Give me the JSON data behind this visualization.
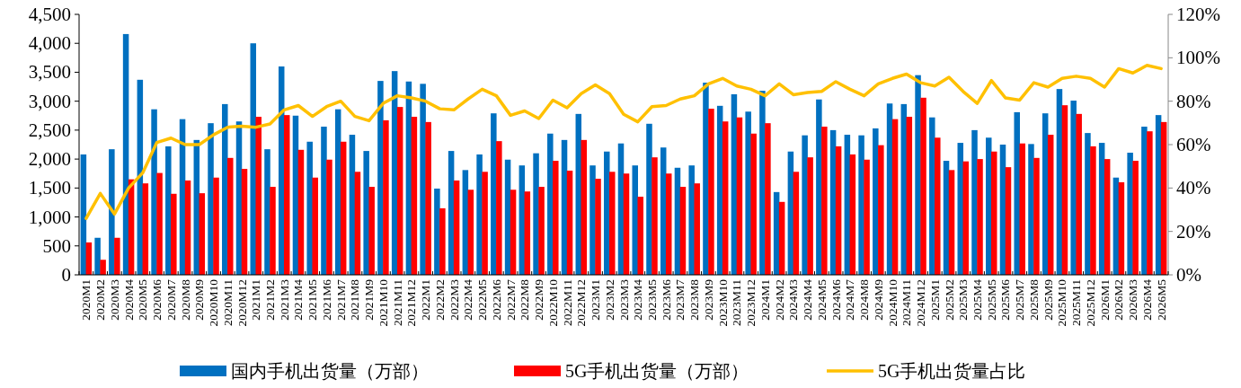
{
  "chart_data": {
    "type": "bar",
    "categories": [
      "2020M1",
      "2020M2",
      "2020M3",
      "2020M4",
      "2020M5",
      "2020M6",
      "2020M7",
      "2020M8",
      "2020M9",
      "2020M10",
      "2020M11",
      "2020M12",
      "2021M1",
      "2021M2",
      "2021M3",
      "2021M4",
      "2021M5",
      "2021M6",
      "2021M7",
      "2021M8",
      "2021M9",
      "2021M10",
      "2021M11",
      "2021M12",
      "2022M1",
      "2022M2",
      "2022M3",
      "2022M4",
      "2022M5",
      "2022M6",
      "2022M7",
      "2022M8",
      "2022M9",
      "2022M10",
      "2022M11",
      "2022M12",
      "2023M1",
      "2023M2",
      "2023M3",
      "2023M4",
      "2023M5",
      "2023M6",
      "2023M7",
      "2023M8",
      "2023M9",
      "2023M10",
      "2023M11",
      "2023M12",
      "2024M1",
      "2024M2",
      "2024M3",
      "2024M4",
      "2024M5",
      "2024M6",
      "2024M7",
      "2024M8",
      "2024M9",
      "2024M10",
      "2024M11",
      "2024M12",
      "2025M1",
      "2025M2",
      "2025M3",
      "2025M4",
      "2025M5",
      "2025M6",
      "2025M7",
      "2025M8",
      "2025M9",
      "2025M10",
      "2025M11",
      "2025M12",
      "2026M1",
      "2026M2",
      "2026M3",
      "2026M4",
      "2026M5"
    ],
    "series": [
      {
        "name": "国内手机出货量（万部）",
        "color": "#0070c0",
        "values": [
          2080,
          640,
          2170,
          4160,
          3370,
          2860,
          2220,
          2690,
          2330,
          2620,
          2950,
          2650,
          4000,
          2170,
          3600,
          2750,
          2300,
          2560,
          2860,
          2420,
          2140,
          3350,
          3520,
          3340,
          3300,
          1490,
          2140,
          1810,
          2080,
          2790,
          1990,
          1890,
          2100,
          2440,
          2330,
          2780,
          1890,
          2130,
          2270,
          1890,
          2610,
          2200,
          1850,
          1890,
          3320,
          2920,
          3120,
          2820,
          3180,
          1430,
          2130,
          2410,
          3030,
          2500,
          2420,
          2410,
          2530,
          2960,
          2950,
          3450,
          2720,
          1970,
          2280,
          2500,
          2370,
          2250,
          2810,
          2260,
          2790,
          3210,
          3010,
          2450,
          2280,
          1680,
          2110,
          2560,
          2760
        ]
      },
      {
        "name": "5G手机出货量（万部）",
        "color": "#ff0000",
        "values": [
          560,
          260,
          640,
          1650,
          1580,
          1760,
          1400,
          1630,
          1410,
          1680,
          2020,
          1830,
          2730,
          1520,
          2760,
          2160,
          1680,
          1990,
          2300,
          1780,
          1520,
          2670,
          2900,
          2730,
          2640,
          1150,
          1630,
          1470,
          1780,
          2310,
          1470,
          1440,
          1520,
          1970,
          1800,
          2330,
          1660,
          1780,
          1750,
          1350,
          2030,
          1750,
          1520,
          1580,
          2870,
          2650,
          2720,
          2440,
          2620,
          1260,
          1780,
          2030,
          2560,
          2220,
          2080,
          1990,
          2240,
          2690,
          2730,
          3060,
          2370,
          1810,
          1960,
          2000,
          2130,
          1860,
          2270,
          2020,
          2420,
          2930,
          2780,
          2220,
          2000,
          1600,
          1970,
          2480,
          2640
        ]
      },
      {
        "name": "5G手机出货量占比",
        "color": "#ffc000",
        "type": "line",
        "axis": "y2",
        "values": [
          26,
          37.5,
          28,
          40,
          47,
          61,
          63,
          60,
          60,
          64.5,
          68,
          68.5,
          68,
          69.5,
          76,
          78,
          73,
          77.5,
          80,
          73,
          71,
          79,
          82.5,
          81.5,
          80,
          76.5,
          76,
          81,
          85.5,
          82.5,
          73.5,
          75.5,
          72,
          80.5,
          77,
          83.5,
          87.5,
          83.5,
          74,
          70.5,
          77.5,
          78,
          81,
          82.5,
          88,
          90.5,
          87,
          85.5,
          82.5,
          88,
          83,
          84,
          84.5,
          89,
          85.5,
          82.5,
          88,
          90.5,
          92.5,
          88.5,
          87,
          91,
          84.5,
          79,
          89.5,
          81.5,
          80.5,
          88.5,
          86.5,
          90.5,
          91.5,
          90.5,
          86.5,
          95,
          93,
          96.5,
          95
        ]
      }
    ],
    "ylim": [
      0,
      4500
    ],
    "yticks": [
      0,
      {
        "value": 500,
        "label": "500"
      },
      {
        "value": 1000,
        "label": "1,000"
      },
      {
        "value": 1500,
        "label": "1,500"
      },
      {
        "value": 2000,
        "label": "2,000"
      },
      {
        "value": 2500,
        "label": "2,500"
      },
      {
        "value": 3000,
        "label": "3,000"
      },
      {
        "value": 3500,
        "label": "3,500"
      },
      {
        "value": 4000,
        "label": "4,000"
      },
      {
        "value": 4500,
        "label": "4,500"
      }
    ],
    "y2lim": [
      0,
      120
    ],
    "y2ticks": [
      {
        "value": 0,
        "label": "0%"
      },
      {
        "value": 20,
        "label": "20%"
      },
      {
        "value": 40,
        "label": "40%"
      },
      {
        "value": 60,
        "label": "60%"
      },
      {
        "value": 80,
        "label": "80%"
      },
      {
        "value": 100,
        "label": "100%"
      },
      {
        "value": 120,
        "label": "120%"
      }
    ],
    "legend": "bottom"
  }
}
